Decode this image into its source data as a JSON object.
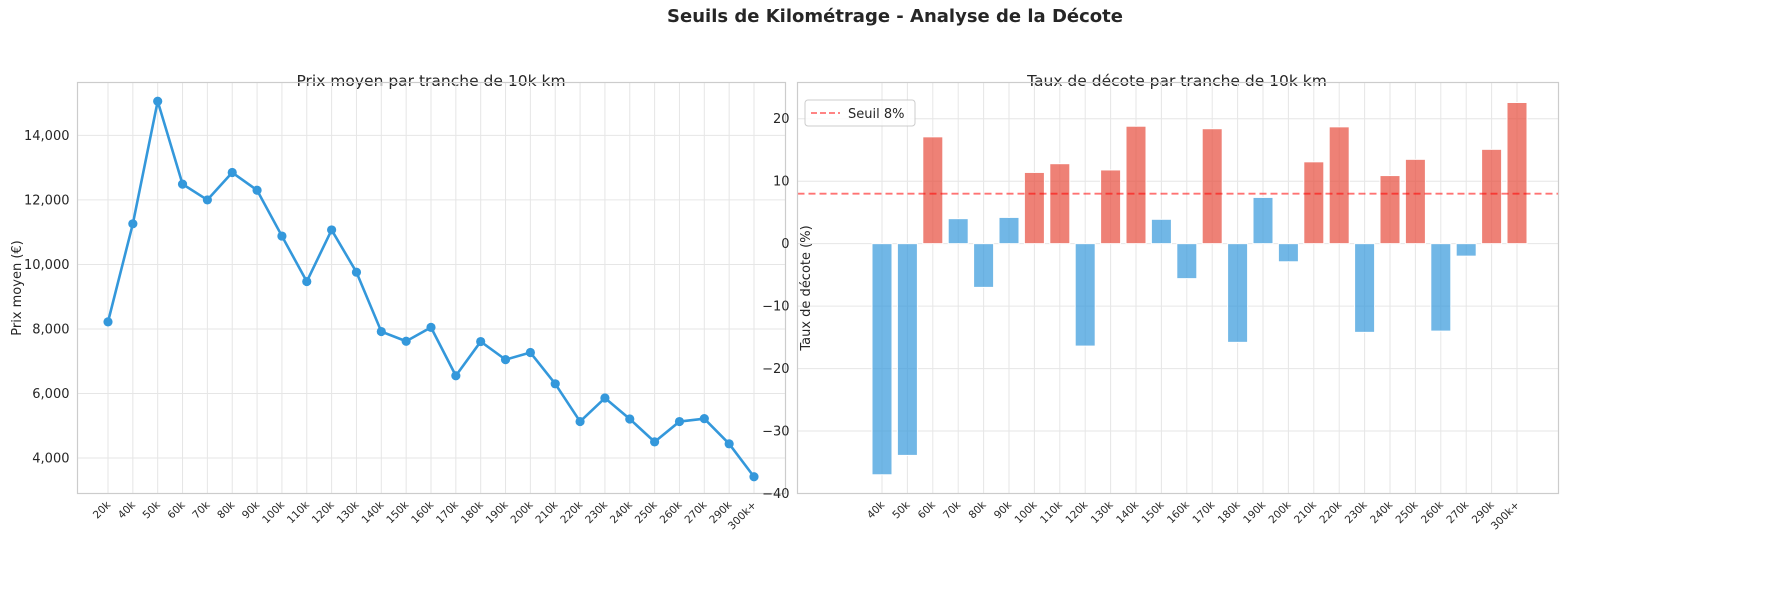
{
  "figure": {
    "suptitle": "Seuils de Kilométrage - Analyse de la Décote"
  },
  "colors": {
    "line": "#3498db",
    "bar_positive": "#e74c3c",
    "bar_negative": "#3498db",
    "threshold": "#ff0000",
    "grid": "#e6e6e6",
    "spine": "#cccccc"
  },
  "chart_data": [
    {
      "type": "line",
      "title": "Prix moyen par tranche de 10k km",
      "xlabel": "",
      "ylabel": "Prix moyen (€)",
      "categories": [
        "20k",
        "40k",
        "50k",
        "60k",
        "70k",
        "80k",
        "90k",
        "100k",
        "110k",
        "120k",
        "130k",
        "140k",
        "150k",
        "160k",
        "170k",
        "180k",
        "190k",
        "200k",
        "210k",
        "220k",
        "230k",
        "240k",
        "250k",
        "260k",
        "270k",
        "290k",
        "300k+"
      ],
      "values": [
        8220,
        11260,
        15060,
        12490,
        12000,
        12850,
        12300,
        10880,
        9470,
        11070,
        9760,
        7920,
        7620,
        8050,
        6550,
        7610,
        7050,
        7270,
        6300,
        5130,
        5860,
        5210,
        4500,
        5130,
        5220,
        4440,
        3420
      ],
      "yticks": [
        4000,
        6000,
        8000,
        10000,
        12000,
        14000
      ],
      "ytick_labels": [
        "4,000",
        "6,000",
        "8,000",
        "10,000",
        "12,000",
        "14,000"
      ],
      "ylim": [
        2900,
        15640
      ],
      "grid": true,
      "marker": "circle"
    },
    {
      "type": "bar",
      "title": "Taux de décote par tranche de 10k km",
      "xlabel": "",
      "ylabel": "Taux de décote (%)",
      "categories": [
        "40k",
        "50k",
        "60k",
        "70k",
        "80k",
        "90k",
        "100k",
        "110k",
        "120k",
        "130k",
        "140k",
        "150k",
        "160k",
        "170k",
        "180k",
        "190k",
        "200k",
        "210k",
        "220k",
        "230k",
        "240k",
        "250k",
        "260k",
        "270k",
        "290k",
        "300k+"
      ],
      "values": [
        -37.0,
        -33.9,
        17.1,
        4.0,
        -7.0,
        4.2,
        11.4,
        12.8,
        -16.4,
        11.8,
        18.8,
        3.9,
        -5.6,
        18.4,
        -15.8,
        7.4,
        -2.9,
        13.1,
        18.7,
        -14.2,
        10.9,
        13.5,
        -14.0,
        -2.0,
        15.1,
        22.6
      ],
      "threshold": {
        "value": 8,
        "label": "Seuil 8%",
        "style": "dashed"
      },
      "color_rule": "red if value > 8 else blue",
      "yticks": [
        -40,
        -30,
        -20,
        -10,
        0,
        10,
        20
      ],
      "ytick_labels": [
        "−40",
        "−30",
        "−20",
        "−10",
        "0",
        "10",
        "20"
      ],
      "ylim": [
        -40,
        25.8
      ],
      "grid": true,
      "legend": {
        "position": "upper left",
        "entries": [
          "Seuil 8%"
        ]
      }
    }
  ]
}
